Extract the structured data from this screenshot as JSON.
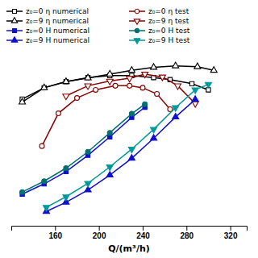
{
  "chart_data": {
    "type": "line",
    "x_label": "Q/(m³/h)",
    "xlim": [
      120,
      335
    ],
    "xticks": [
      160,
      200,
      240,
      280,
      320
    ],
    "ylim": [
      -0.06,
      0.8
    ],
    "tick_labels": "x",
    "series": [
      {
        "name": "z₀=0 η numerical",
        "color": "#000000",
        "marker": "square-open",
        "line_style": "solid",
        "x": [
          130,
          150,
          170,
          190,
          210,
          230,
          250,
          265,
          285,
          300
        ],
        "values": [
          0.56,
          0.615,
          0.645,
          0.665,
          0.675,
          0.675,
          0.665,
          0.655,
          0.635,
          0.605
        ]
      },
      {
        "name": "z₀=0 η test",
        "color": "#8B0000",
        "marker": "circle-open",
        "line_style": "solid",
        "x": [
          148,
          163,
          180,
          197,
          215,
          228,
          240,
          253,
          265
        ],
        "values": [
          0.33,
          0.49,
          0.565,
          0.605,
          0.625,
          0.625,
          0.615,
          0.585,
          0.51
        ]
      },
      {
        "name": "z₀=9 η numerical",
        "color": "#000000",
        "marker": "triangle-up-open",
        "line_style": "solid",
        "x": [
          130,
          150,
          170,
          190,
          210,
          230,
          250,
          270,
          290,
          305
        ],
        "values": [
          0.545,
          0.615,
          0.645,
          0.663,
          0.682,
          0.7,
          0.715,
          0.722,
          0.718,
          0.7
        ]
      },
      {
        "name": "z₀=9 η test",
        "color": "#8B0000",
        "marker": "triangle-down-open",
        "line_style": "solid",
        "x": [
          170,
          190,
          210,
          228,
          242,
          258,
          272,
          288
        ],
        "values": [
          0.575,
          0.625,
          0.648,
          0.662,
          0.682,
          0.668,
          0.625,
          0.538
        ]
      },
      {
        "name": "z₀=0 H numerical",
        "color": "#1010CC",
        "marker": "square",
        "line_style": "solid",
        "x": [
          130,
          150,
          170,
          190,
          210,
          230,
          242
        ],
        "values": [
          0.095,
          0.145,
          0.205,
          0.285,
          0.375,
          0.47,
          0.52
        ]
      },
      {
        "name": "z₀=0 H test",
        "color": "#007070",
        "marker": "circle",
        "line_style": "solid",
        "x": [
          130,
          150,
          170,
          190,
          210,
          230,
          242
        ],
        "values": [
          0.105,
          0.158,
          0.222,
          0.302,
          0.395,
          0.488,
          0.535
        ]
      },
      {
        "name": "z₀=9 H numerical",
        "color": "#1010CC",
        "marker": "triangle-up",
        "line_style": "solid",
        "x": [
          152,
          170,
          190,
          210,
          230,
          250,
          270,
          288
        ],
        "values": [
          0.01,
          0.055,
          0.115,
          0.188,
          0.27,
          0.368,
          0.472,
          0.558
        ]
      },
      {
        "name": "z₀=9 H test",
        "color": "#009999",
        "marker": "triangle-down",
        "line_style": "solid",
        "x": [
          152,
          170,
          190,
          210,
          230,
          250,
          270,
          288,
          300
        ],
        "values": [
          0.03,
          0.082,
          0.148,
          0.228,
          0.315,
          0.412,
          0.518,
          0.605,
          0.632
        ]
      }
    ]
  }
}
